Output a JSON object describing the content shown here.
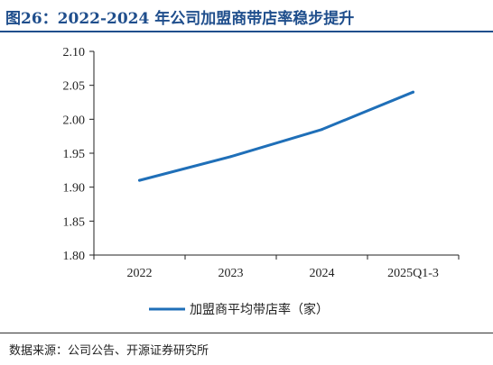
{
  "figure": {
    "title": "图26：2022-2024 年公司加盟商带店率稳步提升",
    "source": "数据来源：公司公告、开源证券研究所"
  },
  "chart_data": {
    "type": "line",
    "categories": [
      "2022",
      "2023",
      "2024",
      "2025Q1-3"
    ],
    "series": [
      {
        "name": "加盟商平均带店率（家）",
        "values": [
          1.91,
          1.945,
          1.985,
          2.04
        ],
        "color": "#1f6fb8"
      }
    ],
    "ylim": [
      1.8,
      2.1
    ],
    "yticks": [
      "1.80",
      "1.85",
      "1.90",
      "1.95",
      "2.00",
      "2.05",
      "2.10"
    ],
    "grid": false,
    "legend_position": "bottom"
  }
}
